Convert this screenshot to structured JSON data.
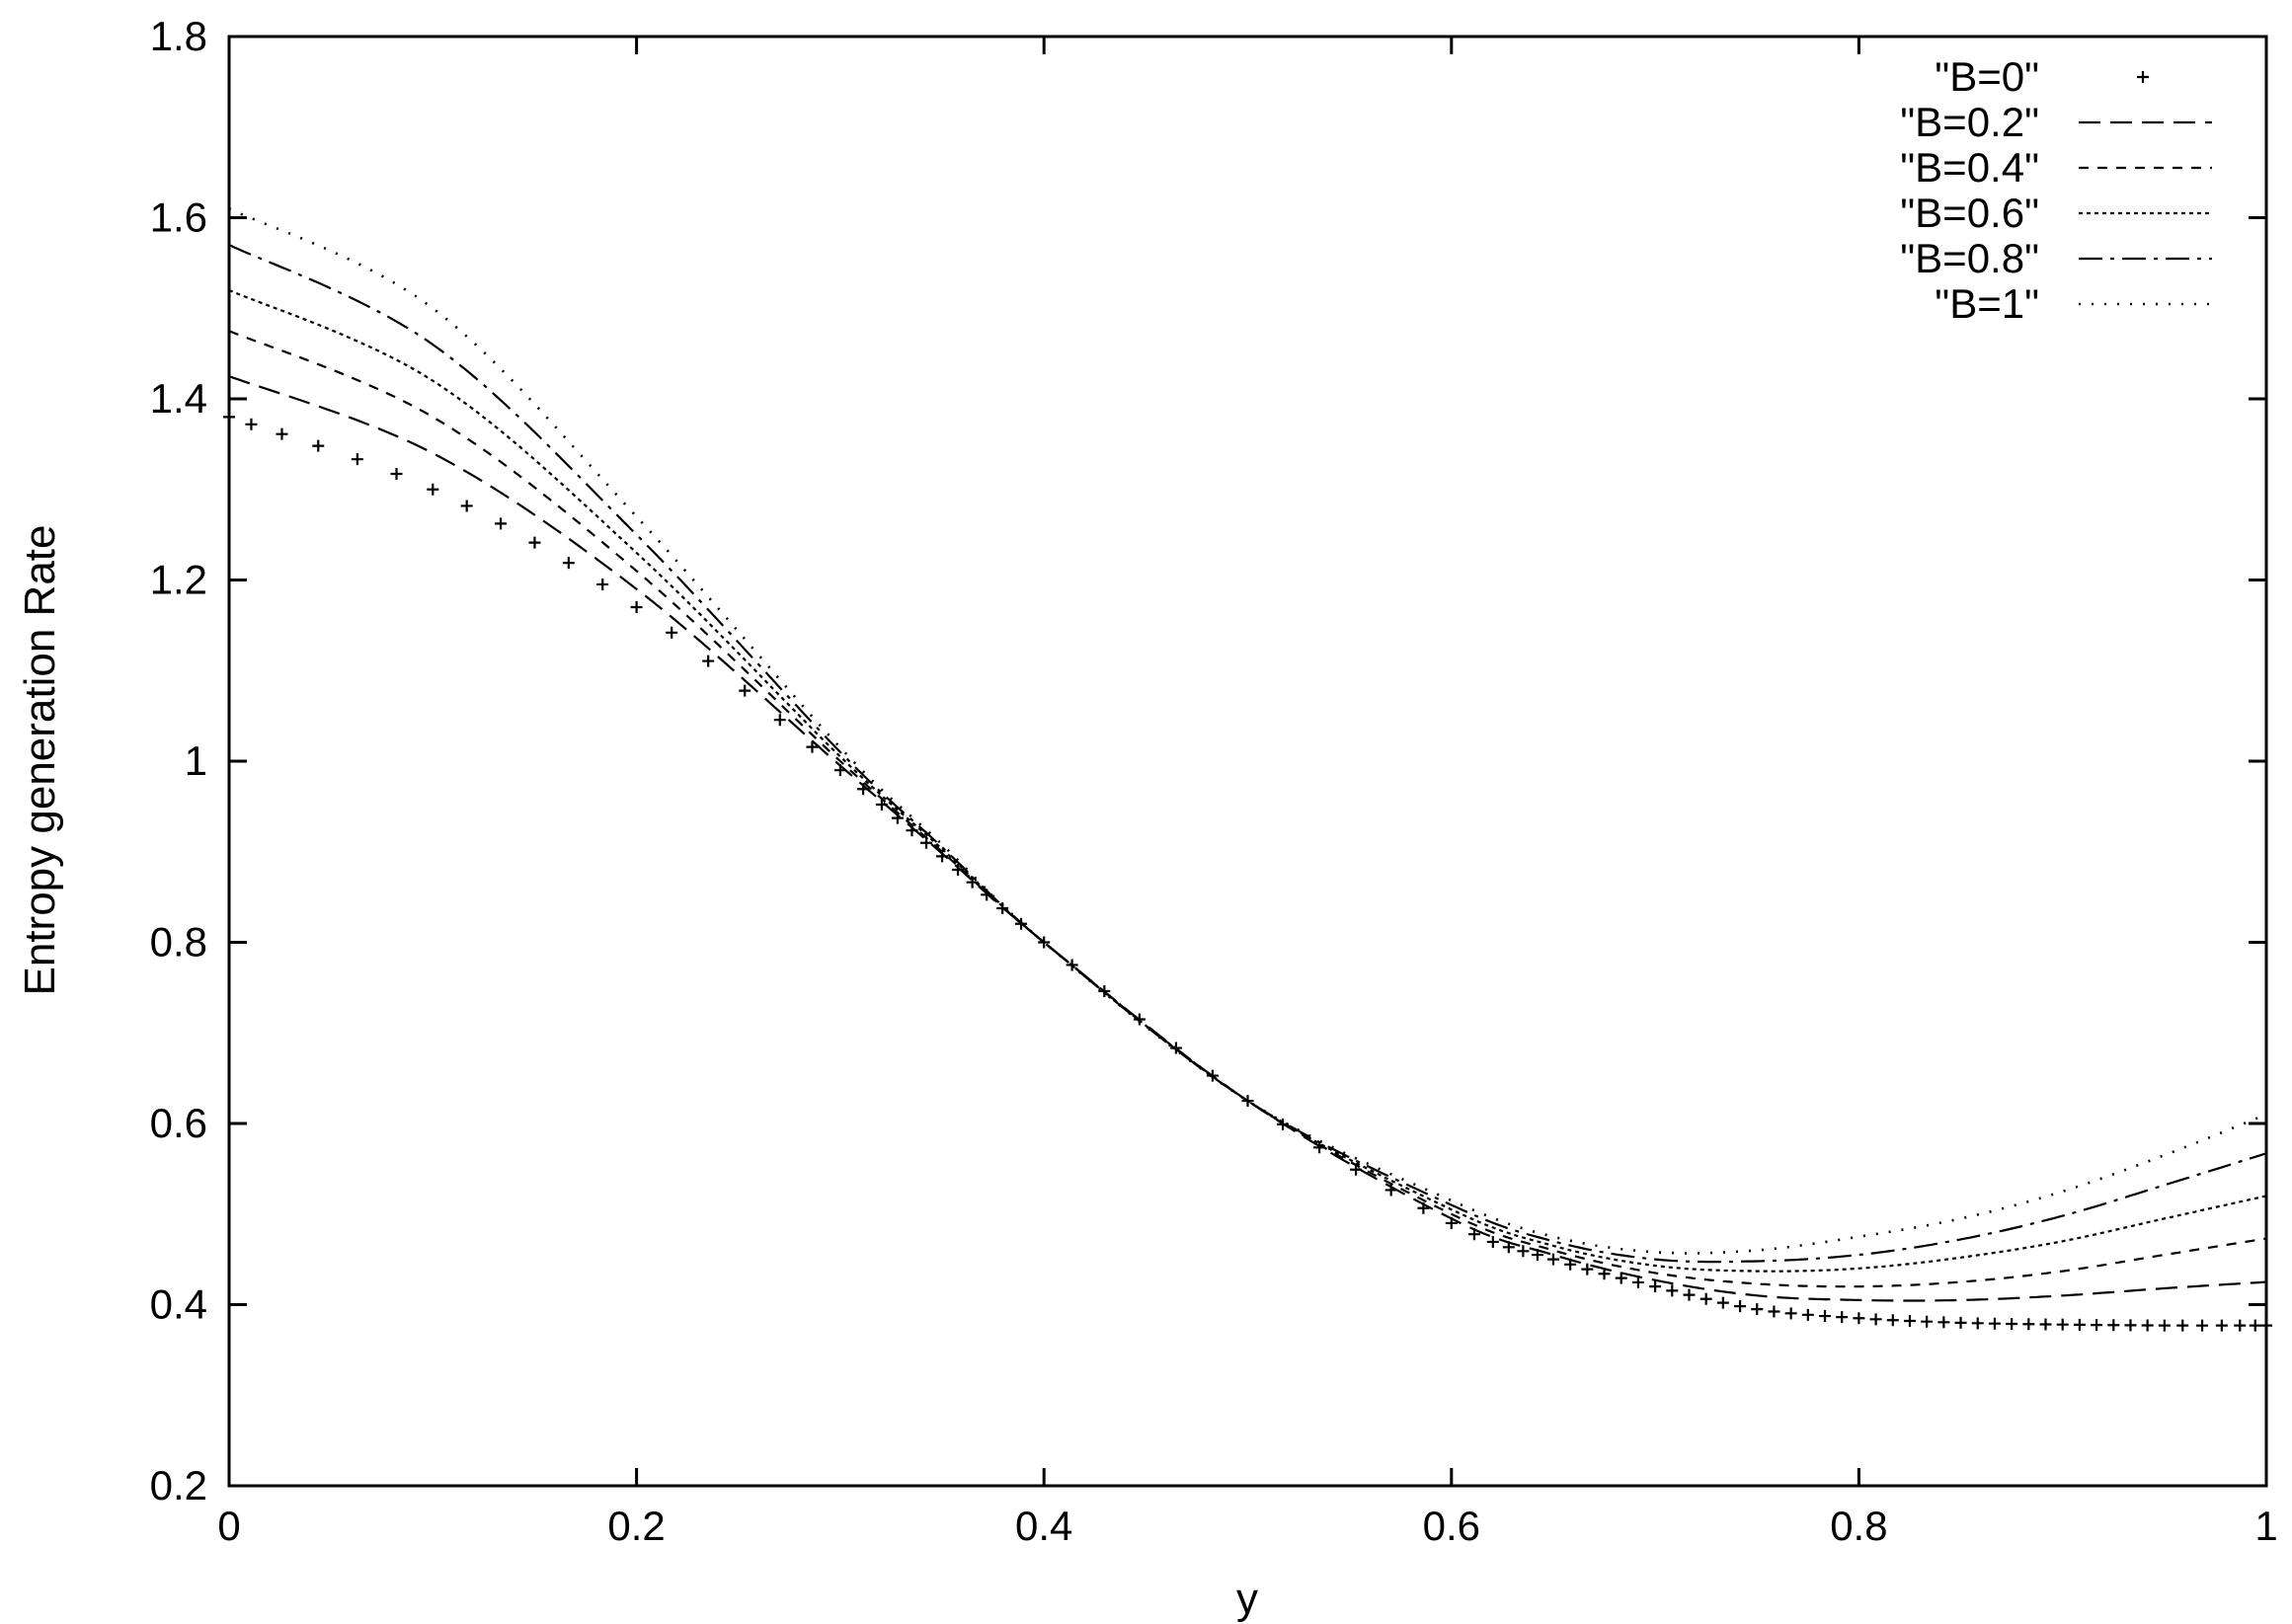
{
  "chart_data": {
    "type": "line",
    "title": "",
    "xlabel": "y",
    "ylabel": "Entropy generation Rate",
    "xlim": [
      0,
      1
    ],
    "ylim": [
      0.2,
      1.8
    ],
    "xticks": [
      "0",
      "0.2",
      "0.4",
      "0.6",
      "0.8",
      "1"
    ],
    "yticks": [
      "0.2",
      "0.4",
      "0.6",
      "0.8",
      "1",
      "1.2",
      "1.4",
      "1.6",
      "1.8"
    ],
    "grid": false,
    "legend_position": "top-right",
    "x": [
      0,
      0.1,
      0.2,
      0.3,
      0.35,
      0.4,
      0.5,
      0.6,
      0.65,
      0.7,
      0.75,
      0.8,
      0.85,
      0.9,
      0.95,
      1.0
    ],
    "series": [
      {
        "name": "\"B=0\"",
        "style": "points",
        "values": [
          1.38,
          1.3,
          1.17,
          0.99,
          0.895,
          0.8,
          0.625,
          0.49,
          0.45,
          0.42,
          0.395,
          0.385,
          0.38,
          0.378,
          0.377,
          0.377
        ]
      },
      {
        "name": "\"B=0.2\"",
        "style": "long-dash",
        "values": [
          1.425,
          1.34,
          1.19,
          0.995,
          0.898,
          0.8,
          0.625,
          0.495,
          0.455,
          0.427,
          0.41,
          0.405,
          0.405,
          0.41,
          0.418,
          0.425
        ]
      },
      {
        "name": "\"B=0.4\"",
        "style": "short-dash",
        "values": [
          1.475,
          1.38,
          1.21,
          1.0,
          0.9,
          0.8,
          0.625,
          0.5,
          0.46,
          0.435,
          0.423,
          0.42,
          0.425,
          0.437,
          0.455,
          0.473
        ]
      },
      {
        "name": "\"B=0.6\"",
        "style": "dotted",
        "values": [
          1.52,
          1.42,
          1.23,
          1.005,
          0.903,
          0.8,
          0.625,
          0.505,
          0.465,
          0.443,
          0.437,
          0.44,
          0.452,
          0.47,
          0.495,
          0.52
        ]
      },
      {
        "name": "\"B=0.8\"",
        "style": "dash-dot",
        "values": [
          1.57,
          1.46,
          1.25,
          1.01,
          0.905,
          0.8,
          0.625,
          0.51,
          0.47,
          0.45,
          0.448,
          0.455,
          0.472,
          0.498,
          0.532,
          0.567
        ]
      },
      {
        "name": "\"B=1\"",
        "style": "sparse-dot",
        "values": [
          1.61,
          1.5,
          1.27,
          1.015,
          0.908,
          0.8,
          0.625,
          0.515,
          0.475,
          0.458,
          0.46,
          0.475,
          0.495,
          0.525,
          0.565,
          0.61
        ]
      }
    ]
  }
}
